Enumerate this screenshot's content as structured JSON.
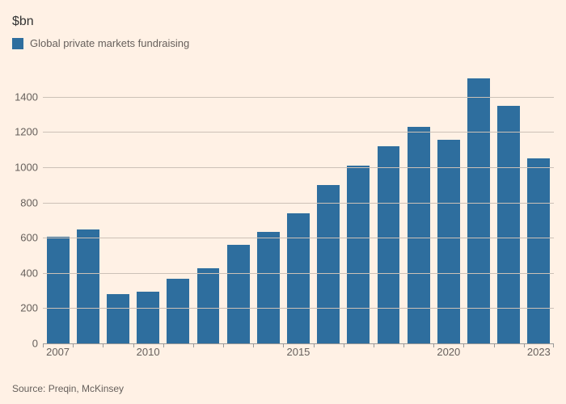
{
  "chart": {
    "type": "bar",
    "background_color": "#fff1e5",
    "subtitle": "$bn",
    "subtitle_fontsize": 16,
    "subtitle_color": "#333333",
    "legend": {
      "label": "Global private markets fundraising",
      "swatch_color": "#2e6e9e",
      "fontsize": 13,
      "text_color": "#66605c"
    },
    "bar_color": "#2e6e9e",
    "bar_width_ratio": 0.75,
    "grid_color": "#ccc1b7",
    "baseline_color": "#999999",
    "y": {
      "min": 0,
      "max": 1560,
      "tick_step": 200,
      "ticks": [
        0,
        200,
        400,
        600,
        800,
        1000,
        1200,
        1400
      ],
      "label_fontsize": 13,
      "label_color": "#66605c"
    },
    "x": {
      "label_fontsize": 13,
      "label_color": "#66605c",
      "labeled_years": [
        2007,
        2010,
        2015,
        2020,
        2023
      ]
    },
    "data": [
      {
        "year": 2007,
        "value": 605
      },
      {
        "year": 2008,
        "value": 645
      },
      {
        "year": 2009,
        "value": 280
      },
      {
        "year": 2010,
        "value": 295
      },
      {
        "year": 2011,
        "value": 365
      },
      {
        "year": 2012,
        "value": 425
      },
      {
        "year": 2013,
        "value": 560
      },
      {
        "year": 2014,
        "value": 635
      },
      {
        "year": 2015,
        "value": 740
      },
      {
        "year": 2016,
        "value": 900
      },
      {
        "year": 2017,
        "value": 1010
      },
      {
        "year": 2018,
        "value": 1120
      },
      {
        "year": 2019,
        "value": 1230
      },
      {
        "year": 2020,
        "value": 1155
      },
      {
        "year": 2021,
        "value": 1505
      },
      {
        "year": 2022,
        "value": 1350
      },
      {
        "year": 2023,
        "value": 1050
      }
    ],
    "source": "Source: Preqin, McKinsey",
    "source_fontsize": 12,
    "source_color": "#66605c"
  }
}
